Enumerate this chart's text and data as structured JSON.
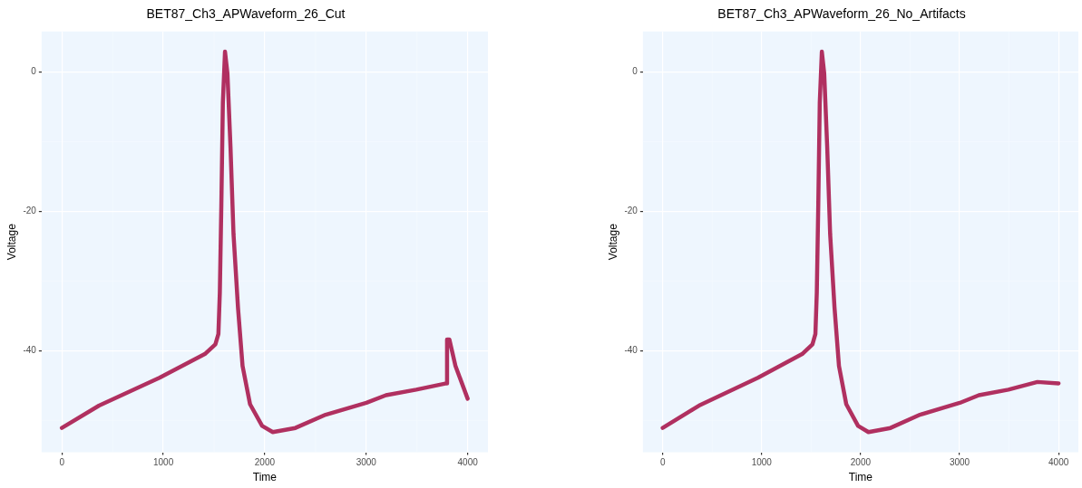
{
  "chart_data": [
    {
      "type": "line",
      "title": "BET87_Ch3_APWaveform_26_Cut",
      "xlabel": "Time",
      "ylabel": "Voltage",
      "grid": true,
      "legend": false,
      "marker": "none",
      "line_style": "solid",
      "xlim": [
        -200,
        4200
      ],
      "ylim": [
        -54.6,
        5.8
      ],
      "xticks": [
        0,
        1000,
        2000,
        3000,
        4000
      ],
      "yticks": [
        -40,
        -20,
        0
      ],
      "series": [
        {
          "color": "#b03060",
          "x": [
            0,
            366,
            962,
            1409,
            1513,
            1543,
            1557,
            1572,
            1587,
            1608,
            1632,
            1662,
            1692,
            1736,
            1781,
            1855,
            1974,
            2079,
            2302,
            2600,
            3002,
            3195,
            3493,
            3791,
            3797,
            3820,
            3880,
            4000
          ],
          "values": [
            -51.1,
            -47.9,
            -43.9,
            -40.5,
            -39.1,
            -37.6,
            -31.7,
            -19.1,
            -4.4,
            2.9,
            -0.2,
            -10.7,
            -23.3,
            -33.8,
            -42.2,
            -47.7,
            -50.8,
            -51.7,
            -51.1,
            -49.2,
            -47.5,
            -46.4,
            -45.6,
            -44.7,
            -38.4,
            -38.4,
            -42.2,
            -46.9
          ]
        }
      ]
    },
    {
      "type": "line",
      "title": "BET87_Ch3_APWaveform_26_No_Artifacts",
      "xlabel": "Time",
      "ylabel": "Voltage",
      "grid": true,
      "legend": false,
      "marker": "none",
      "line_style": "solid",
      "xlim": [
        -200,
        4200
      ],
      "ylim": [
        -54.6,
        5.8
      ],
      "xticks": [
        0,
        1000,
        2000,
        3000,
        4000
      ],
      "yticks": [
        -40,
        -20,
        0
      ],
      "series": [
        {
          "color": "#b03060",
          "x": [
            0,
            366,
            962,
            1409,
            1513,
            1543,
            1557,
            1572,
            1587,
            1608,
            1632,
            1662,
            1692,
            1736,
            1781,
            1855,
            1974,
            2079,
            2302,
            2600,
            3002,
            3195,
            3493,
            3786,
            4000
          ],
          "values": [
            -51.1,
            -47.9,
            -43.9,
            -40.5,
            -39.1,
            -37.6,
            -31.7,
            -19.1,
            -4.4,
            2.9,
            -0.2,
            -10.7,
            -23.3,
            -33.8,
            -42.2,
            -47.7,
            -50.8,
            -51.7,
            -51.1,
            -49.2,
            -47.5,
            -46.4,
            -45.6,
            -44.5,
            -44.7
          ]
        }
      ]
    }
  ]
}
